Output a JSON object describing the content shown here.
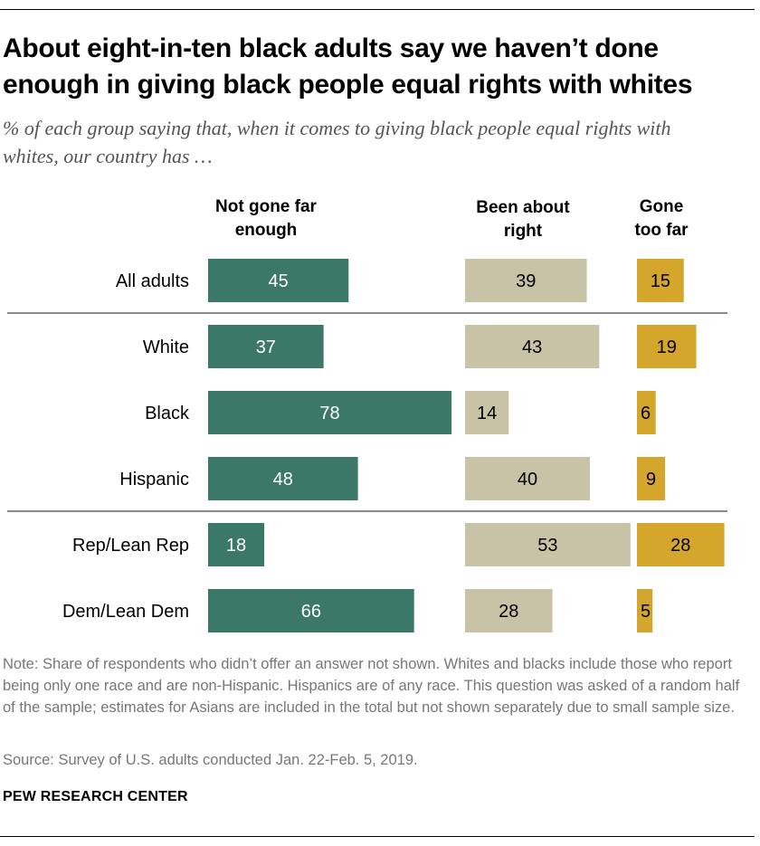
{
  "title": "About eight-in-ten black adults say we haven’t done enough in giving black people equal rights with whites",
  "subtitle": "% of each group saying that, when it comes to giving black people equal rights with whites, our country has …",
  "chart_data": {
    "type": "bar",
    "orientation": "horizontal",
    "stacking": "side-by-side columns",
    "categories": [
      "All adults",
      "White",
      "Black",
      "Hispanic",
      "Rep/Lean Rep",
      "Dem/Lean Dem"
    ],
    "series": [
      {
        "name": "Not gone far enough",
        "values": [
          45,
          37,
          78,
          48,
          18,
          66
        ],
        "color": "#3b7867",
        "label_color": "#ffffff"
      },
      {
        "name": "Been about right",
        "values": [
          39,
          43,
          14,
          40,
          53,
          28
        ],
        "color": "#c8c2a6",
        "label_color": "#000000"
      },
      {
        "name": "Gone too far",
        "values": [
          15,
          19,
          6,
          9,
          28,
          5
        ],
        "color": "#d4a62b",
        "label_color": "#000000"
      }
    ],
    "column_headers": [
      [
        "Not gone far",
        "enough"
      ],
      [
        "Been about",
        "right"
      ],
      [
        "Gone",
        "too far"
      ]
    ],
    "group_dividers_after": [
      "All adults",
      "Hispanic"
    ],
    "xlim": [
      0,
      100
    ],
    "grid": false,
    "legend": "column headers on top"
  },
  "note": "Note: Share of respondents who didn’t offer an answer not shown. Whites and blacks include those who report being only one race and are non-Hispanic. Hispanics are of any race. This question was asked of a random half of the sample; estimates for Asians are included in the total but not shown separately due to small sample size.",
  "source": "Source: Survey of U.S. adults conducted Jan. 22-Feb. 5, 2019.",
  "brand": "PEW RESEARCH CENTER"
}
